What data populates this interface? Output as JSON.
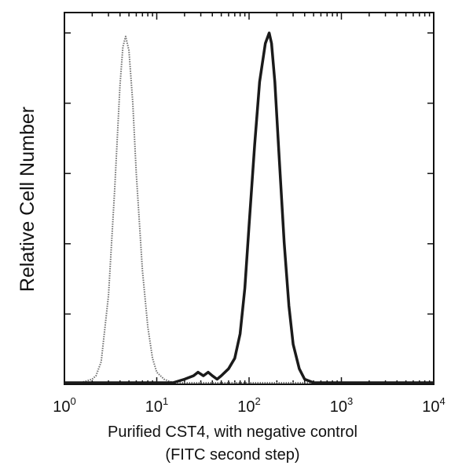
{
  "chart_data": {
    "type": "line",
    "title": "",
    "xlabel": "Purified CST4, with negative control",
    "xlabel2": "(FITC second step)",
    "ylabel": "Relative Cell Number",
    "x_scale": "log",
    "xlim": [
      1,
      10000
    ],
    "ylim": [
      0,
      1
    ],
    "x_ticks": [
      {
        "base": "10",
        "exp": "0"
      },
      {
        "base": "10",
        "exp": "1"
      },
      {
        "base": "10",
        "exp": "2"
      },
      {
        "base": "10",
        "exp": "3"
      },
      {
        "base": "10",
        "exp": "4"
      }
    ],
    "grid": false,
    "series": [
      {
        "style": "dotted",
        "color": "#6f6f6f",
        "x": [
          1,
          1.5,
          2,
          2.2,
          2.5,
          3,
          3.5,
          4,
          4.3,
          4.6,
          5,
          5.5,
          6,
          7,
          8,
          9,
          10,
          12,
          15,
          20,
          30,
          50,
          100,
          300,
          1000,
          10000
        ],
        "y": [
          0.0,
          0.0,
          0.01,
          0.02,
          0.06,
          0.25,
          0.55,
          0.85,
          0.96,
          0.99,
          0.95,
          0.8,
          0.6,
          0.32,
          0.16,
          0.07,
          0.03,
          0.01,
          0.0,
          0.0,
          0.0,
          0.0,
          0.0,
          0.0,
          0.0,
          0.0
        ]
      },
      {
        "style": "solid",
        "color": "#1a1a1a",
        "x": [
          1,
          10,
          15,
          20,
          25,
          28,
          32,
          36,
          40,
          45,
          50,
          60,
          70,
          80,
          90,
          100,
          115,
          130,
          150,
          165,
          175,
          190,
          210,
          240,
          270,
          300,
          350,
          400,
          500,
          1000,
          10000
        ],
        "y": [
          0.0,
          0.0,
          0.0,
          0.01,
          0.02,
          0.03,
          0.02,
          0.03,
          0.02,
          0.01,
          0.02,
          0.04,
          0.07,
          0.14,
          0.27,
          0.45,
          0.68,
          0.86,
          0.97,
          1.0,
          0.97,
          0.86,
          0.66,
          0.4,
          0.22,
          0.11,
          0.04,
          0.01,
          0.0,
          0.0,
          0.0
        ]
      }
    ]
  }
}
